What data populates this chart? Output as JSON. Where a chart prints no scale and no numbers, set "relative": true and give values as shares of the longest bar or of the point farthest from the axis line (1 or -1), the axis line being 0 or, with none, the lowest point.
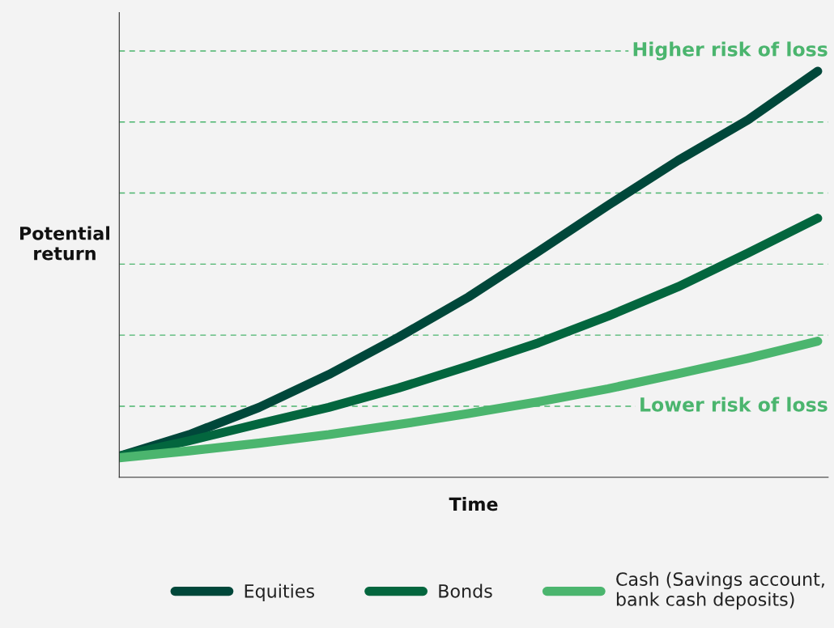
{
  "chart_data": {
    "type": "line",
    "relative": true,
    "xlabel": "Time",
    "ylabel": "Potential return",
    "categories": [
      null,
      null,
      null,
      null,
      null,
      null,
      null,
      null,
      null,
      null,
      null
    ],
    "series": [
      {
        "name": "Equities",
        "color": "#00473a",
        "values": [
          0.052,
          0.105,
          0.172,
          0.253,
          0.345,
          0.444,
          0.556,
          0.67,
          0.78,
          0.88,
          1.0
        ]
      },
      {
        "name": "Bonds",
        "color": "#03663e",
        "values": [
          0.052,
          0.09,
          0.132,
          0.172,
          0.22,
          0.274,
          0.331,
          0.397,
          0.469,
          0.552,
          0.638
        ]
      },
      {
        "name": "Cash (Savings account, bank cash deposits)",
        "color": "#4bb56e",
        "values": [
          0.048,
          0.065,
          0.084,
          0.105,
          0.13,
          0.157,
          0.186,
          0.218,
          0.255,
          0.293,
          0.335
        ]
      }
    ],
    "ref_lines": [
      {
        "axis": "y",
        "value": 0.175,
        "label": "Lower risk of loss",
        "color": "#4bb56e",
        "line_style": "dashed"
      },
      {
        "axis": "y",
        "value": 0.35,
        "color": "#4bb56e",
        "line_style": "dashed"
      },
      {
        "axis": "y",
        "value": 0.525,
        "color": "#4bb56e",
        "line_style": "dashed"
      },
      {
        "axis": "y",
        "value": 0.7,
        "color": "#4bb56e",
        "line_style": "dashed"
      },
      {
        "axis": "y",
        "value": 0.875,
        "color": "#4bb56e",
        "line_style": "dashed"
      },
      {
        "axis": "y",
        "value": 1.05,
        "label": "Higher risk of loss",
        "color": "#4bb56e",
        "line_style": "dashed"
      }
    ],
    "legend": "bottom",
    "line_style": "solid",
    "marker": "none"
  }
}
